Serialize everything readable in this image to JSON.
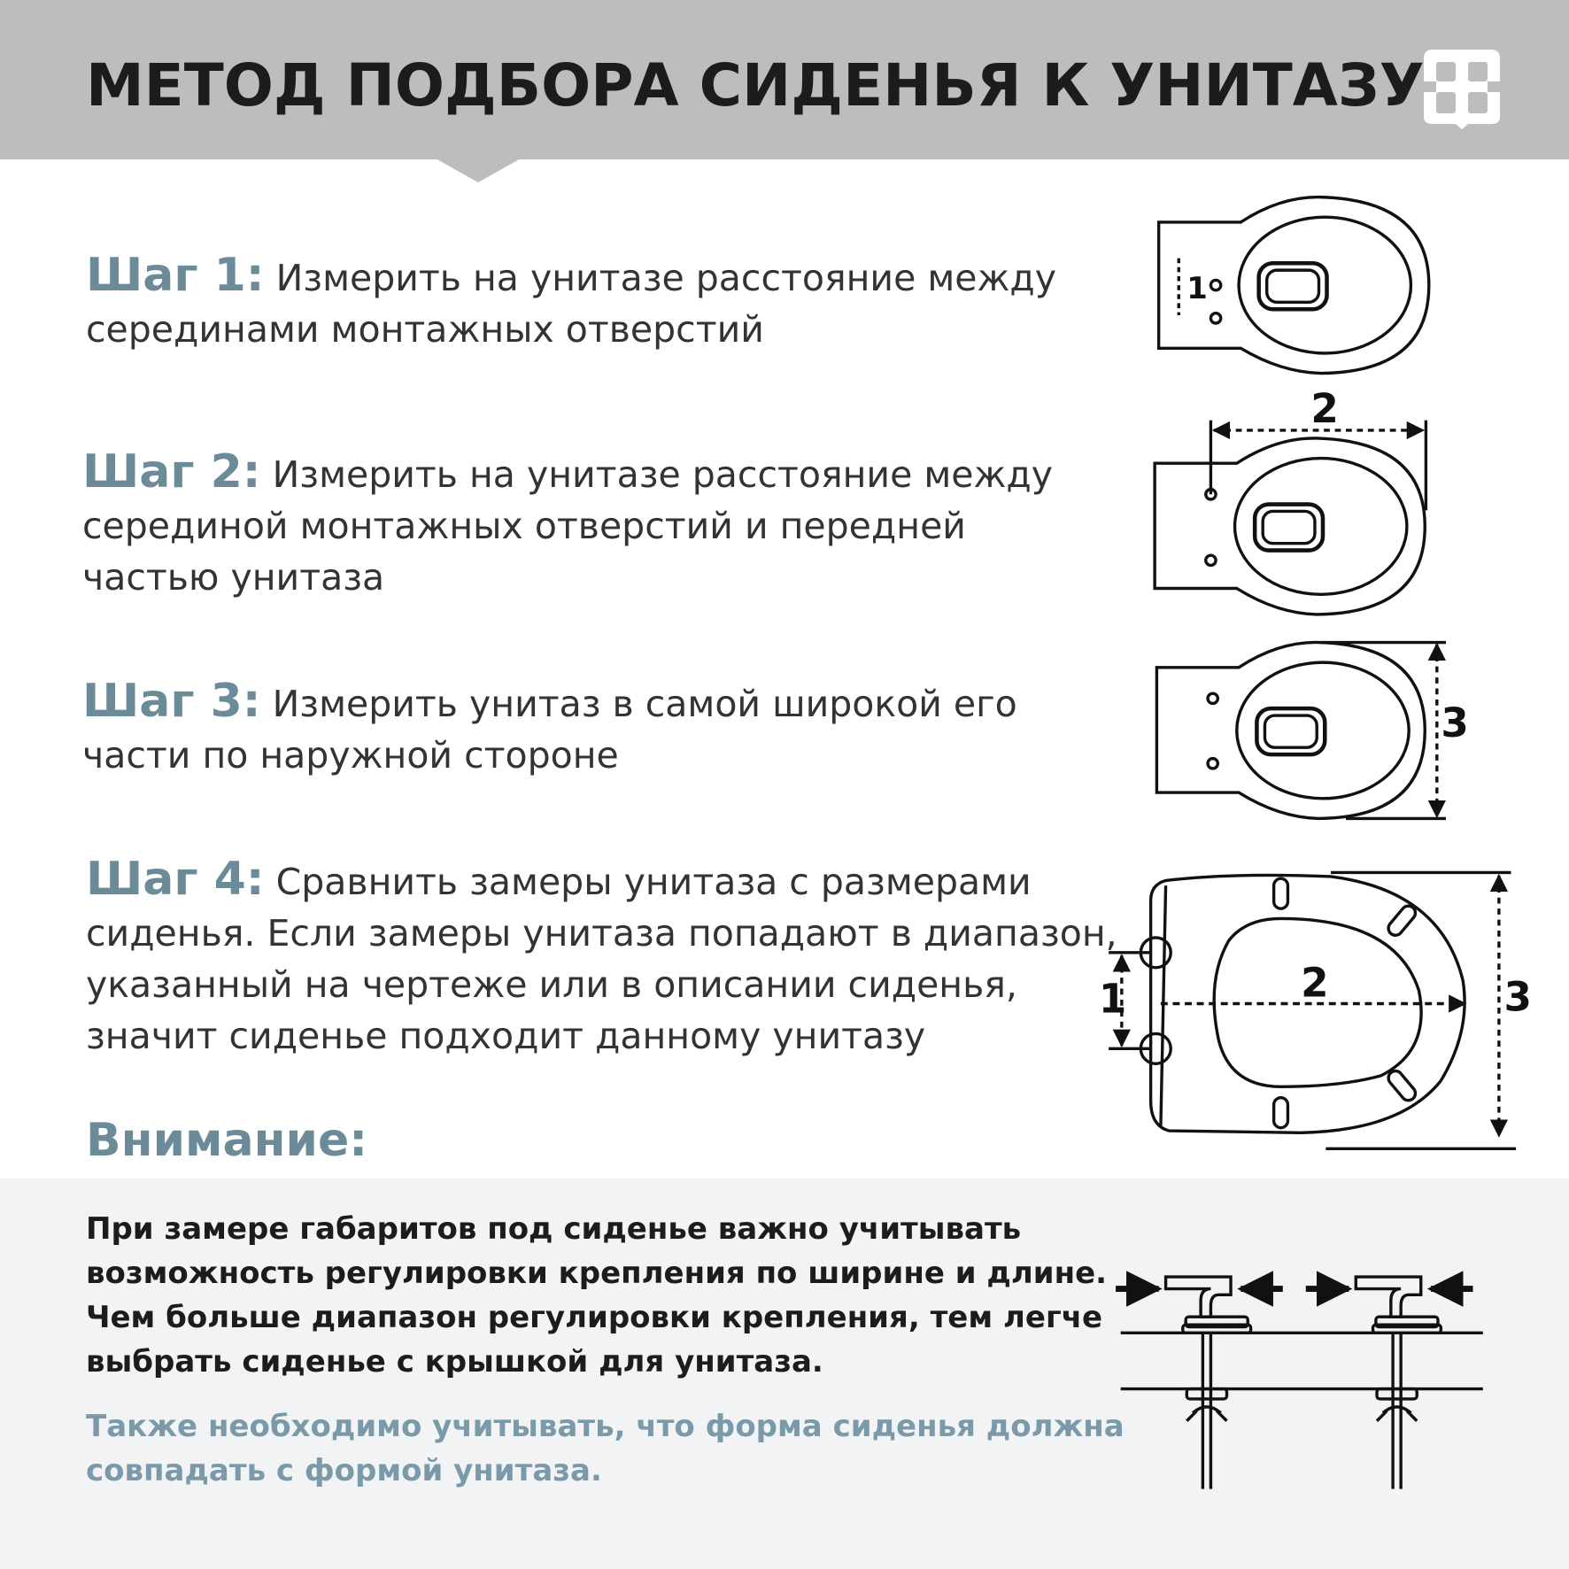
{
  "header": {
    "title": "МЕТОД ПОДБОРА СИДЕНЬЯ К УНИТАЗУ",
    "logo": "ЭЄ"
  },
  "steps": [
    {
      "label": "Шаг 1:",
      "lines": [
        "Измерить на унитазе расстояние между",
        "серединами монтажных отверстий"
      ]
    },
    {
      "label": "Шаг 2:",
      "lines": [
        "Измерить на унитазе расстояние между",
        "серединой монтажных отверстий и передней",
        "частью унитаза"
      ]
    },
    {
      "label": "Шаг 3:",
      "lines": [
        "Измерить унитаз в самой широкой его",
        "части по наружной стороне"
      ]
    },
    {
      "label": "Шаг 4:",
      "lines": [
        "Сравнить замеры унитаза с размерами",
        "сиденья. Если замеры унитаза попадают в диапазон,",
        "указанный на чертеже или в описании сиденья,",
        "значит сиденье подходит данному унитазу"
      ]
    }
  ],
  "attention": {
    "title": "Внимание:",
    "lines": [
      "При замере габаритов под сиденье важно учитывать",
      "возможность регулировки крепления по ширине и длине.",
      "Чем больше диапазон регулировки крепления,  тем легче",
      "выбрать сиденье с крышкой для унитаза."
    ],
    "note_lines": [
      "Также необходимо учитывать, что форма сиденья должна",
      "совпадать с формой унитаза."
    ]
  },
  "diagram_labels": {
    "d1": "1",
    "d2": "2",
    "d3": "3"
  },
  "colors": {
    "header_bg": "#bcbdbf",
    "accent": "#6c8b99",
    "panel_bg": "#f2f3f5"
  }
}
